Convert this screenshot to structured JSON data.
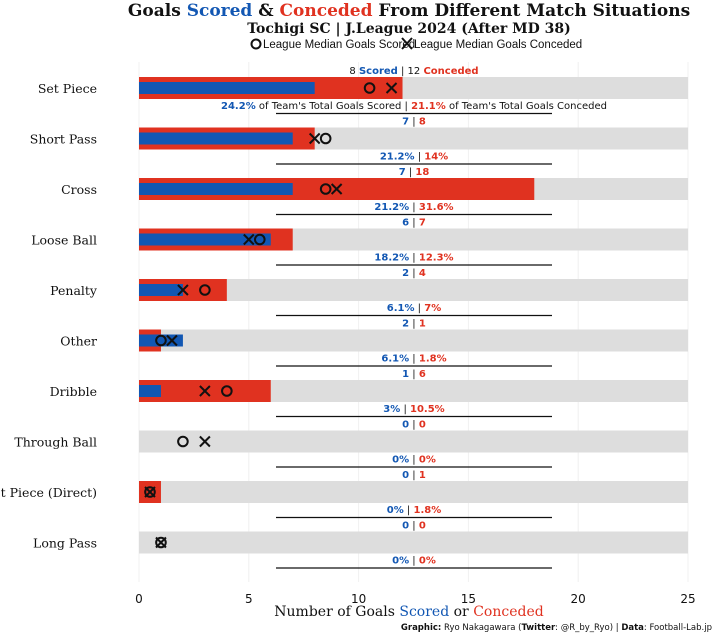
{
  "title": {
    "prefix": "Goals ",
    "scored_word": "Scored",
    "middle": " & ",
    "conceded_word": "Conceded",
    "suffix": " From Different Match Situations"
  },
  "subtitle": "Tochigi SC | J.League 2024 (After MD 38)",
  "legend": {
    "scored_label": "League Median Goals Scored",
    "conceded_label": "League Median Goals Conceded"
  },
  "first_row_label_scored_word": "Scored",
  "first_row_label_conceded_word": "Conceded",
  "first_row_pct_scored_text": "of Team's Total Goals Scored",
  "first_row_pct_conceded_text": "of Team's Total Goals Conceded",
  "xlabel": {
    "prefix": "Number of Goals ",
    "scored_word": "Scored",
    "middle": " or ",
    "conceded_word": "Conceded"
  },
  "credits": {
    "graphic_label": "Graphic:",
    "graphic_text": " Ryo Nakagawara (",
    "twitter_label": "Twitter",
    "twitter_text": ": @R_by_Ryo) | ",
    "data_label": "Data",
    "data_text": ": Football-Lab.jp"
  },
  "colors": {
    "scored": "#1257b3",
    "conceded": "#e03220",
    "track": "#dddddd",
    "grid": "#f0f0f0",
    "text": "#111111"
  },
  "chart_data": {
    "type": "bar",
    "orientation": "horizontal",
    "xlim": [
      0,
      25
    ],
    "xticks": [
      0,
      5,
      10,
      15,
      20,
      25
    ],
    "categories": [
      "Set Piece",
      "Short Pass",
      "Cross",
      "Loose Ball",
      "Penalty",
      "Other",
      "Dribble",
      "Through Ball",
      "Set Piece (Direct)",
      "Long Pass"
    ],
    "series": [
      {
        "name": "Scored",
        "values": [
          8,
          7,
          7,
          6,
          2,
          2,
          1,
          0,
          0,
          0
        ]
      },
      {
        "name": "Conceded",
        "values": [
          12,
          8,
          18,
          7,
          4,
          1,
          6,
          0,
          1,
          0
        ]
      }
    ],
    "league_median_scored": [
      10.5,
      8.5,
      8.5,
      5.5,
      3,
      1,
      4,
      2,
      0.5,
      1
    ],
    "league_median_conceded": [
      11.5,
      8,
      9,
      5,
      2,
      1.5,
      3,
      3,
      0.5,
      1
    ],
    "pct_scored": [
      "24.2%",
      "21.2%",
      "21.2%",
      "18.2%",
      "6.1%",
      "6.1%",
      "3%",
      "0%",
      "0%",
      "0%"
    ],
    "pct_conceded": [
      "21.1%",
      "14%",
      "31.6%",
      "12.3%",
      "7%",
      "1.8%",
      "10.5%",
      "0%",
      "1.8%",
      "0%"
    ]
  }
}
